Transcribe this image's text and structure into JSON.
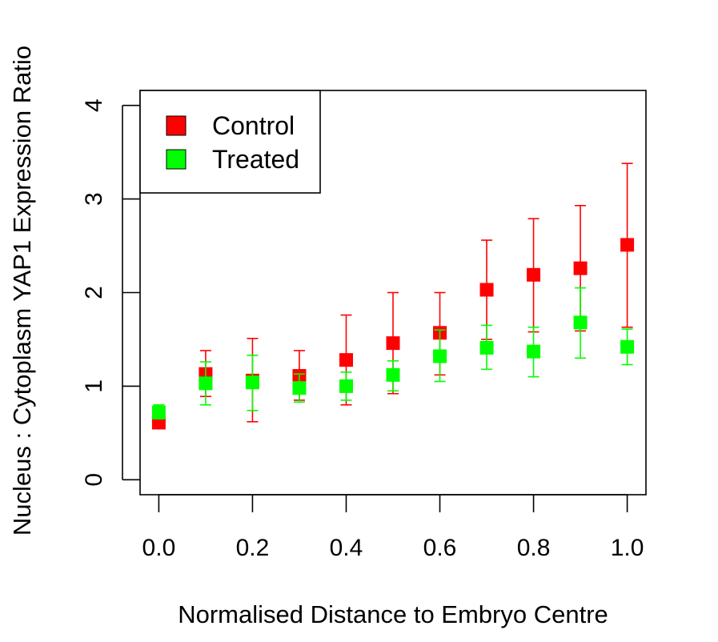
{
  "chart_data": {
    "type": "scatter",
    "title": "",
    "xlabel": "Normalised Distance to Embryo Centre",
    "ylabel": "Nucleus : Cytoplasm YAP1 Expression Ratio",
    "x": [
      0.0,
      0.1,
      0.2,
      0.3,
      0.4,
      0.5,
      0.6,
      0.7,
      0.8,
      0.9,
      1.0
    ],
    "xlim": [
      -0.04,
      1.04
    ],
    "ylim": [
      -0.16,
      4.16
    ],
    "x_ticks": [
      0.0,
      0.2,
      0.4,
      0.6,
      0.8,
      1.0
    ],
    "x_tick_labels": [
      "0.0",
      "0.2",
      "0.4",
      "0.6",
      "0.8",
      "1.0"
    ],
    "y_ticks": [
      0,
      1,
      2,
      3,
      4
    ],
    "y_tick_labels": [
      "0",
      "1",
      "2",
      "3",
      "4"
    ],
    "grid": false,
    "legend_position": "top-left",
    "series": [
      {
        "name": "Control",
        "color": "#ff0000",
        "values": [
          0.61,
          1.13,
          1.06,
          1.11,
          1.28,
          1.46,
          1.57,
          2.03,
          2.19,
          2.26,
          2.51
        ],
        "lower": [
          0.61,
          0.89,
          0.62,
          0.85,
          0.8,
          0.92,
          1.12,
          1.5,
          1.58,
          1.59,
          1.63
        ],
        "upper": [
          0.61,
          1.38,
          1.51,
          1.38,
          1.76,
          2.0,
          2.0,
          2.56,
          2.79,
          2.93,
          3.38
        ]
      },
      {
        "name": "Treated",
        "color": "#00ff00",
        "values": [
          0.72,
          1.03,
          1.04,
          0.98,
          1.0,
          1.12,
          1.32,
          1.41,
          1.37,
          1.68,
          1.42
        ],
        "lower": [
          0.65,
          0.8,
          0.74,
          0.83,
          0.85,
          0.95,
          1.05,
          1.18,
          1.1,
          1.3,
          1.23
        ],
        "upper": [
          0.8,
          1.26,
          1.33,
          1.13,
          1.15,
          1.27,
          1.6,
          1.65,
          1.63,
          2.05,
          1.61
        ]
      }
    ]
  }
}
